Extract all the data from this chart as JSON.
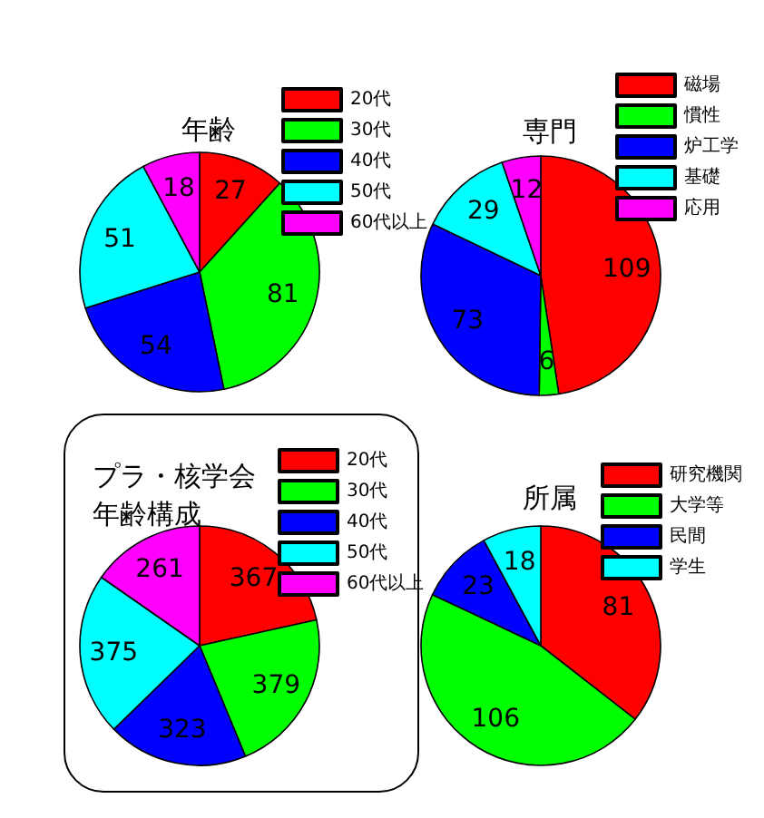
{
  "chart_data": [
    {
      "type": "pie",
      "title": "年齢",
      "categories": [
        "20代",
        "30代",
        "40代",
        "50代",
        "60代以上"
      ],
      "values": [
        27,
        81,
        54,
        51,
        18
      ],
      "colors": [
        "#ff0000",
        "#00ff00",
        "#0000ff",
        "#00ffff",
        "#ff00ff"
      ],
      "data_labels": true,
      "legend": "top right"
    },
    {
      "type": "pie",
      "title": "専門",
      "categories": [
        "磁場",
        "慣性",
        "炉工学",
        "基礎",
        "応用"
      ],
      "values": [
        109,
        6,
        73,
        29,
        12
      ],
      "colors": [
        "#ff0000",
        "#00ff00",
        "#0000ff",
        "#00ffff",
        "#ff00ff"
      ],
      "data_labels": true,
      "legend": "top right"
    },
    {
      "type": "pie",
      "title": "プラ・核学会年齢構成",
      "categories": [
        "20代",
        "30代",
        "40代",
        "50代",
        "60代以上"
      ],
      "values": [
        367,
        379,
        323,
        375,
        261
      ],
      "colors": [
        "#ff0000",
        "#00ff00",
        "#0000ff",
        "#00ffff",
        "#ff00ff"
      ],
      "data_labels": true,
      "legend": "top right"
    },
    {
      "type": "pie",
      "title": "所属",
      "categories": [
        "研究機関",
        "大学等",
        "民間",
        "学生"
      ],
      "values": [
        81,
        106,
        23,
        18
      ],
      "colors": [
        "#ff0000",
        "#00ff00",
        "#0000ff",
        "#00ffff"
      ],
      "data_labels": true,
      "legend": "top right"
    }
  ]
}
